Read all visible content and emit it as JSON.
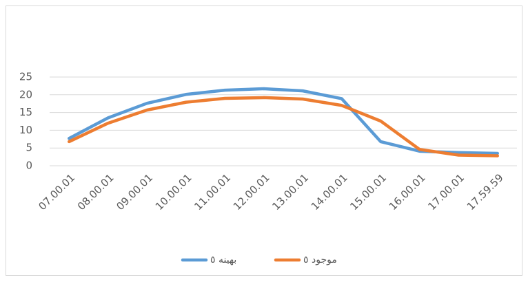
{
  "chart_data": {
    "type": "line",
    "categories": [
      "07.00.01",
      "08.00.01",
      "09.00.01",
      "10.00.01",
      "11.00.01",
      "12.00.01",
      "13.00.01",
      "14.00.01",
      "15.00.01",
      "16.00.01",
      "17.00.01",
      "17.59.59"
    ],
    "series": [
      {
        "name": "بهینه ٥",
        "color": "#5b9bd5",
        "values": [
          7.7,
          13.5,
          17.6,
          20.1,
          21.3,
          21.7,
          21.1,
          18.9,
          6.8,
          4.1,
          3.7,
          3.5
        ]
      },
      {
        "name": "موجود ٥",
        "color": "#ed7d31",
        "values": [
          6.8,
          12.0,
          15.7,
          17.9,
          19.0,
          19.2,
          18.8,
          17.0,
          12.6,
          4.6,
          3.0,
          2.8
        ]
      }
    ],
    "ylim": [
      0,
      25
    ],
    "yticks": [
      0,
      5,
      10,
      15,
      20,
      25
    ],
    "grid": true,
    "legend": "bottom"
  }
}
